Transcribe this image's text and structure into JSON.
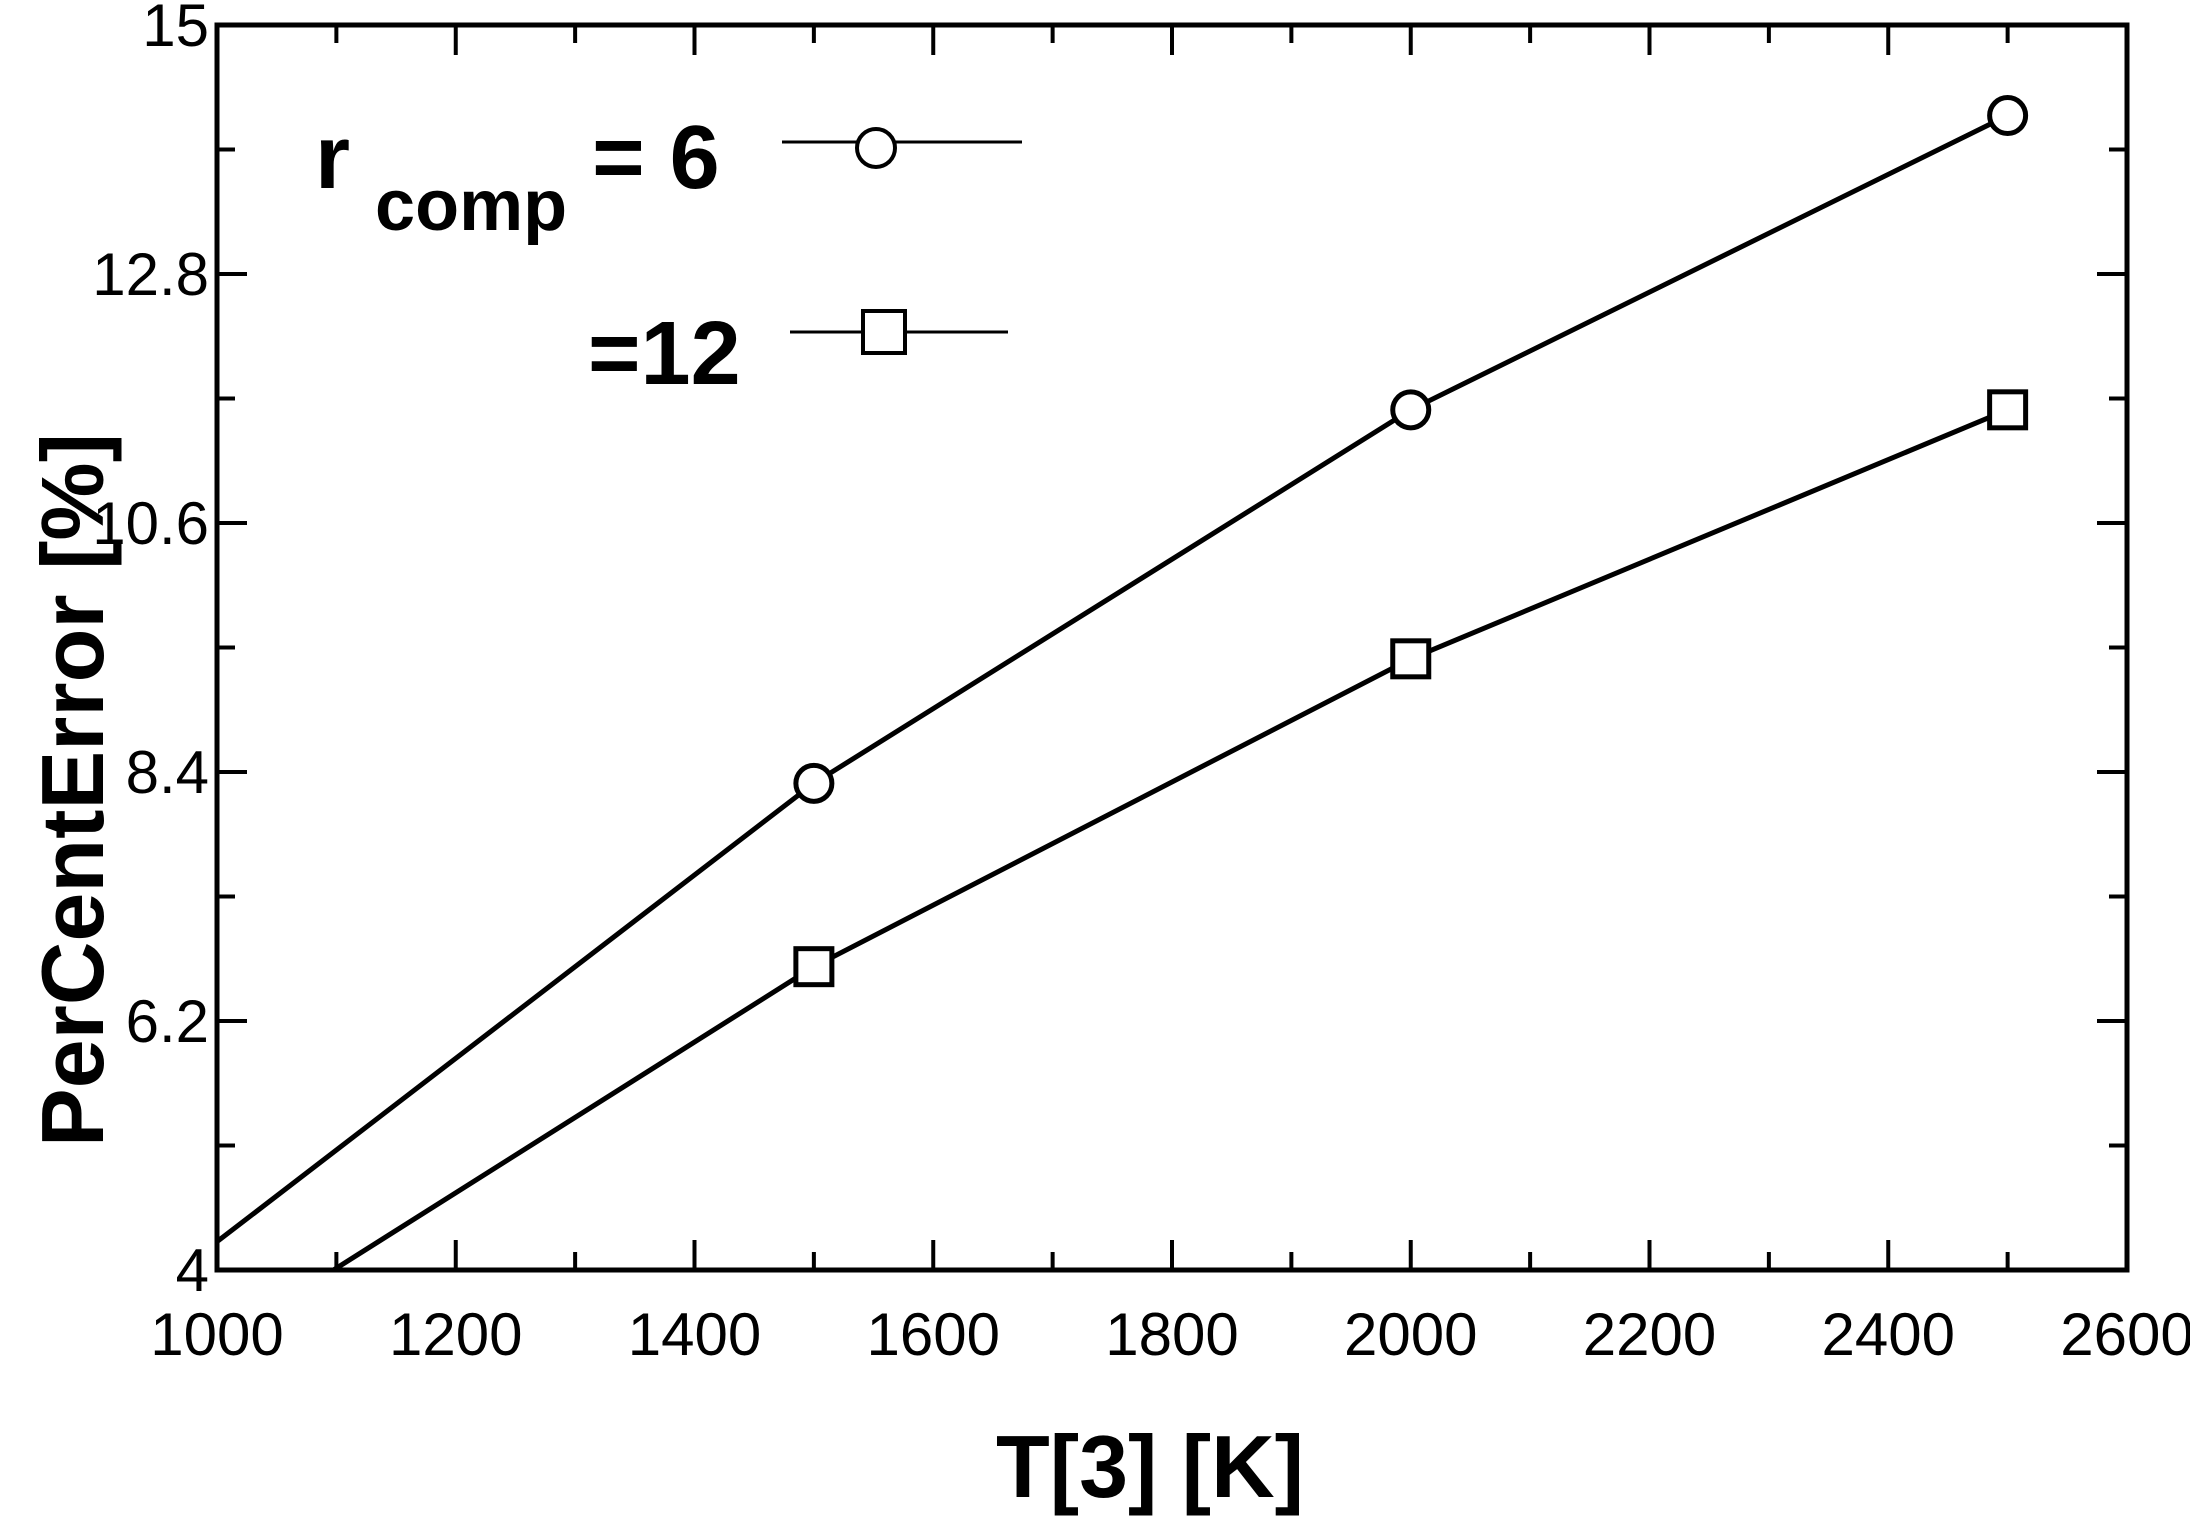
{
  "chart_data": {
    "type": "line",
    "xlabel": "T[3]  [K]",
    "ylabel": "PerCentError  [%]",
    "xlim": [
      1000,
      2600
    ],
    "ylim": [
      4,
      15
    ],
    "xticks": [
      1000,
      1200,
      1400,
      1600,
      1800,
      2000,
      2200,
      2400,
      2600
    ],
    "yticks": [
      4,
      6.2,
      8.4,
      10.6,
      12.8,
      15
    ],
    "x_tick_labels": [
      "1000",
      "1200",
      "1400",
      "1600",
      "1800",
      "2000",
      "2200",
      "2400",
      "2600"
    ],
    "y_tick_labels": [
      "4",
      "6.2",
      "8.4",
      "10.6",
      "12.8",
      "15"
    ],
    "grid": false,
    "legend_placement": "top-left",
    "series": [
      {
        "name": "r_comp = 6",
        "marker": "circle",
        "x": [
          1000,
          1500,
          2000,
          2500
        ],
        "y": [
          4.25,
          8.3,
          11.6,
          14.2
        ]
      },
      {
        "name": "=12",
        "marker": "square",
        "x": [
          1000,
          1500,
          2000,
          2500
        ],
        "y": [
          3.35,
          6.68,
          9.4,
          11.6
        ]
      }
    ],
    "legend": {
      "r_label": "r",
      "comp_label": "comp",
      "six_label": " = 6",
      "twelve_label": "=12"
    }
  }
}
